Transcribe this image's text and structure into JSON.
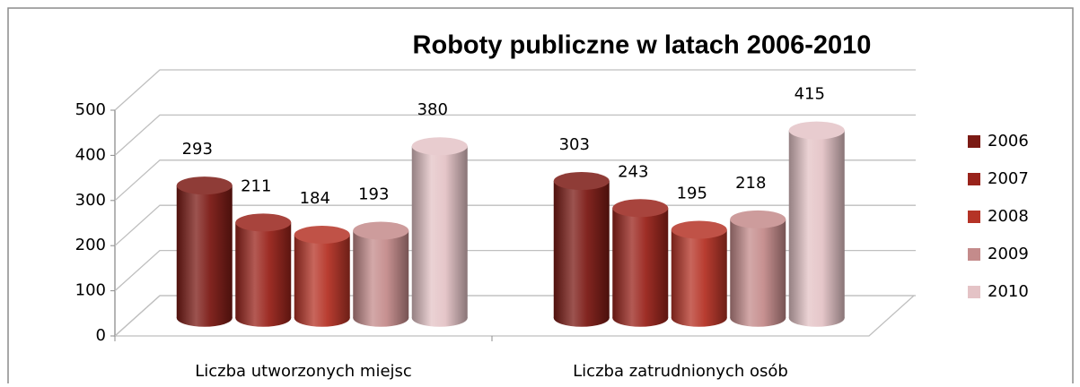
{
  "chart_data": {
    "type": "bar3d",
    "title": "Roboty publiczne w latach 2006-2010",
    "categories": [
      "Liczba utworzonych  miejsc",
      "Liczba zatrudnionych  osób"
    ],
    "series": [
      {
        "name": "2006",
        "color": "#7b1a14",
        "values": [
          293,
          303
        ]
      },
      {
        "name": "2007",
        "color": "#99231b",
        "values": [
          211,
          243
        ]
      },
      {
        "name": "2008",
        "color": "#b53326",
        "values": [
          184,
          195
        ]
      },
      {
        "name": "2009",
        "color": "#c48b8b",
        "values": [
          193,
          218
        ]
      },
      {
        "name": "2010",
        "color": "#e4c3c6",
        "values": [
          380,
          415
        ]
      }
    ],
    "ylim": [
      0,
      500
    ],
    "yticks": [
      0,
      100,
      200,
      300,
      400,
      500
    ],
    "grid": true,
    "legend": "right"
  }
}
